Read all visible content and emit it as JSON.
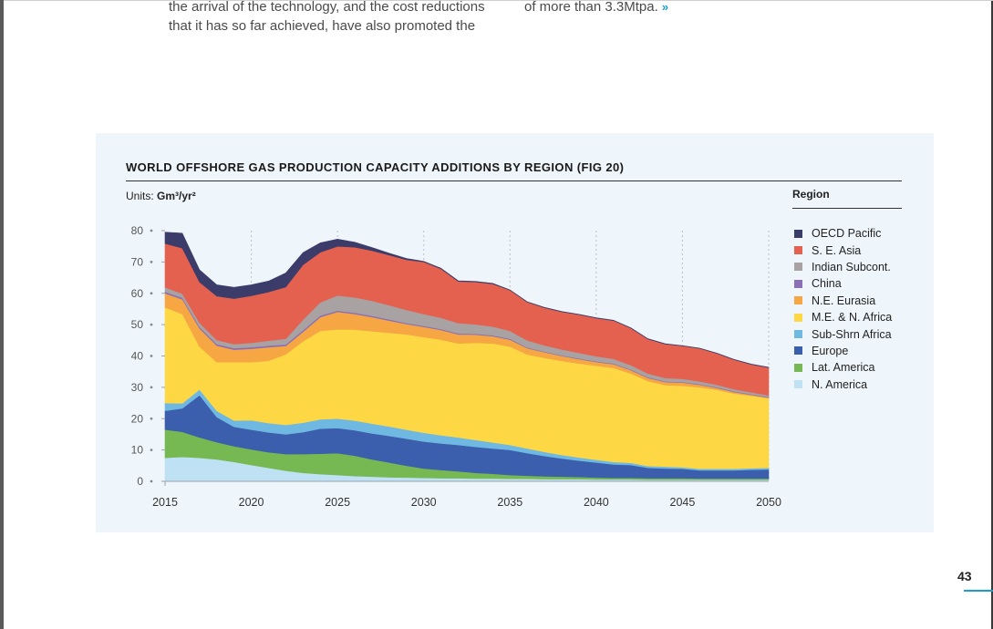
{
  "page": {
    "text_left_line1": "the arrival of the technology, and the cost reductions",
    "text_left_line2": "that it has so far achieved, have also promoted the",
    "text_right_line1": "of more than 3.3Mtpa.",
    "chevron": "»",
    "page_number": "43"
  },
  "chart": {
    "title": "WORLD OFFSHORE GAS PRODUCTION CAPACITY ADDITIONS BY REGION (FIG 20)",
    "units_label": "Units:",
    "units_value": "Gm³/yr²",
    "legend_title": "Region"
  },
  "chart_data": {
    "type": "area",
    "stacked": true,
    "title": "WORLD OFFSHORE GAS PRODUCTION CAPACITY ADDITIONS BY REGION (FIG 20)",
    "ylabel": "Gm³/yr²",
    "ylim": [
      0,
      80
    ],
    "yticks": [
      0,
      10,
      20,
      30,
      40,
      50,
      60,
      70,
      80
    ],
    "xlim": [
      2015,
      2050
    ],
    "xticks": [
      2015,
      2020,
      2025,
      2030,
      2035,
      2040,
      2045,
      2050
    ],
    "legend_position": "right",
    "x": [
      2015,
      2016,
      2017,
      2018,
      2019,
      2020,
      2021,
      2022,
      2023,
      2024,
      2025,
      2026,
      2027,
      2028,
      2029,
      2030,
      2031,
      2032,
      2033,
      2034,
      2035,
      2036,
      2037,
      2038,
      2039,
      2040,
      2041,
      2042,
      2043,
      2044,
      2045,
      2046,
      2047,
      2048,
      2049,
      2050
    ],
    "series": [
      {
        "name": "N. America",
        "color": "#bfe1f4",
        "values": [
          7.5,
          7.8,
          7.5,
          7,
          6.2,
          5.2,
          4.3,
          3.4,
          2.7,
          2.3,
          2,
          1.7,
          1.5,
          1.3,
          1.2,
          1.1,
          1,
          1,
          0.9,
          0.9,
          0.8,
          0.8,
          0.7,
          0.7,
          0.7,
          0.6,
          0.6,
          0.6,
          0.5,
          0.5,
          0.5,
          0.5,
          0.5,
          0.5,
          0.5,
          0.5
        ]
      },
      {
        "name": "Lat. America",
        "color": "#76b852",
        "values": [
          9,
          8,
          6.5,
          5.5,
          5,
          5,
          5,
          5.3,
          6,
          6.5,
          7,
          6.5,
          5.5,
          4.7,
          3.8,
          3,
          2.6,
          2.2,
          1.8,
          1.5,
          1.2,
          1,
          0.9,
          0.8,
          0.7,
          0.6,
          0.5,
          0.5,
          0.5,
          0.5,
          0.5,
          0.4,
          0.4,
          0.4,
          0.4,
          0.4
        ]
      },
      {
        "name": "Europe",
        "color": "#3b5ead",
        "values": [
          6,
          7.5,
          13.5,
          8,
          6.2,
          6.3,
          6.3,
          6.3,
          7,
          8,
          8,
          8.1,
          8.3,
          8.5,
          8.6,
          8.6,
          8.5,
          8.4,
          8.3,
          8.1,
          8,
          7.2,
          6.5,
          5.8,
          5.2,
          4.8,
          4.3,
          4.1,
          3.3,
          3.1,
          3,
          2.6,
          2.6,
          2.6,
          2.8,
          2.9
        ]
      },
      {
        "name": "Sub-Shrn Africa",
        "color": "#6fb8e2",
        "values": [
          2.5,
          1.6,
          1.8,
          2,
          2,
          3,
          3,
          3,
          3,
          3,
          3,
          3.1,
          3.1,
          3,
          2.9,
          2.8,
          2.6,
          2.4,
          2.2,
          1.9,
          1.6,
          1.5,
          1.3,
          1.1,
          1,
          0.9,
          0.8,
          0.7,
          0.6,
          0.6,
          0.5,
          0.5,
          0.5,
          0.5,
          0.5,
          0.5
        ]
      },
      {
        "name": "M.E. & N. Africa",
        "color": "#fdd844",
        "values": [
          30.5,
          28.5,
          13.7,
          15.5,
          18.6,
          18.5,
          19.9,
          22.5,
          26,
          28.2,
          28.5,
          29,
          29.5,
          29.9,
          30.4,
          30.5,
          30.5,
          30,
          31,
          31.6,
          31.4,
          30,
          30,
          30,
          30,
          30,
          30,
          28.5,
          27.1,
          26,
          26,
          26,
          25.2,
          24,
          23.1,
          22.2
        ]
      },
      {
        "name": "N.E. Eurasia",
        "color": "#f6a642",
        "values": [
          4.5,
          4.7,
          5.8,
          5.3,
          4,
          4.3,
          4.3,
          2.7,
          3,
          4.4,
          5.6,
          5,
          4.5,
          3.9,
          3.3,
          3.3,
          3.1,
          2.9,
          2.6,
          2.3,
          2.2,
          2,
          1.8,
          1.6,
          1.4,
          1.2,
          1.2,
          1.1,
          1,
          1,
          1,
          0.8,
          0.6,
          0.5,
          0.3,
          0.2
        ]
      },
      {
        "name": "China",
        "color": "#8b6db8",
        "values": [
          0.5,
          0.5,
          0.5,
          0.5,
          0.5,
          0.5,
          0.5,
          0.5,
          0.5,
          0.5,
          0.4,
          0.4,
          0.4,
          0.4,
          0.3,
          0.3,
          0.3,
          0.3,
          0.3,
          0.3,
          0.3,
          0.2,
          0.2,
          0.2,
          0.2,
          0.2,
          0.2,
          0.2,
          0.2,
          0.2,
          0.2,
          0.2,
          0.2,
          0.2,
          0.2,
          0.2
        ]
      },
      {
        "name": "Indian Subcont.",
        "color": "#a8a2a2",
        "values": [
          1.4,
          1.3,
          1.3,
          1.3,
          1.3,
          1.4,
          1.6,
          1.8,
          3.4,
          4.2,
          4.8,
          4.9,
          4.8,
          4.5,
          4.2,
          3.8,
          3.6,
          3.3,
          3,
          2.8,
          2.5,
          2.3,
          2,
          1.9,
          1.8,
          1.6,
          1.5,
          1.4,
          1.2,
          1.1,
          1,
          0.9,
          0.8,
          0.7,
          0.6,
          0.5
        ]
      },
      {
        "name": "S. E. Asia",
        "color": "#e5614f",
        "values": [
          14,
          14.5,
          13,
          14,
          14.5,
          15,
          15.5,
          16.5,
          17.5,
          16,
          15.7,
          16,
          16,
          16,
          16,
          16.6,
          15.6,
          13.3,
          13.5,
          13.6,
          13,
          12.2,
          12,
          12,
          12.2,
          12.2,
          12.2,
          11.8,
          11,
          10.8,
          10.5,
          10.5,
          10,
          9.4,
          8.9,
          8.9
        ]
      },
      {
        "name": "OECD Pacific",
        "color": "#3b3c6a",
        "values": [
          3.6,
          4.8,
          3.9,
          3.6,
          3.6,
          3.5,
          3.5,
          4.5,
          3.9,
          3,
          2.3,
          1.6,
          1,
          0.6,
          0.4,
          0.2,
          0.2,
          0.2,
          0.2,
          0.2,
          0.1,
          0.1,
          0.1,
          0.1,
          0.1,
          0.1,
          0.1,
          0.1,
          0.1,
          0.1,
          0.1,
          0.1,
          0.1,
          0.1,
          0.1,
          0.1
        ]
      }
    ]
  }
}
